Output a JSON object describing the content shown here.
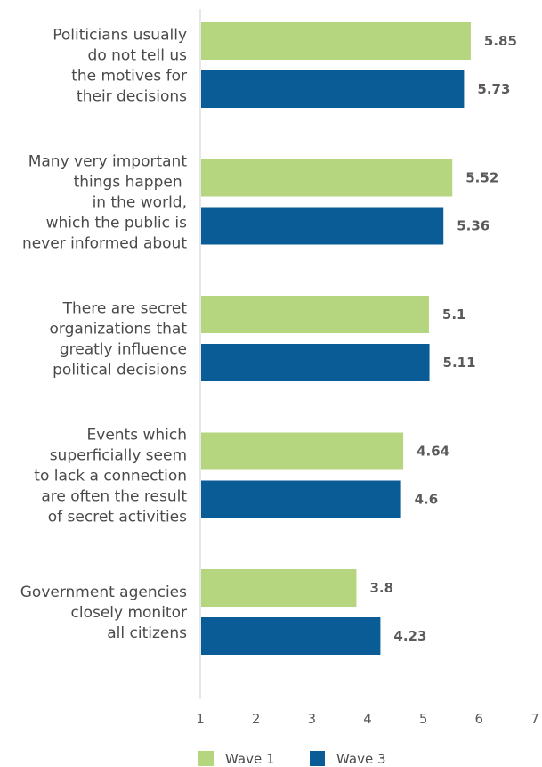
{
  "chart_data": {
    "type": "bar",
    "orientation": "horizontal",
    "xlim": [
      1,
      7
    ],
    "ticks": [
      "1",
      "2",
      "3",
      "4",
      "5",
      "6",
      "7"
    ],
    "categories": [
      [
        "Politicians usually",
        "do not tell us",
        "the motives for",
        "their decisions"
      ],
      [
        "Many very important",
        "things happen ",
        "in the world,",
        "which the public is",
        "never informed about"
      ],
      [
        "There are secret",
        "organizations that",
        "greatly influence",
        "political decisions"
      ],
      [
        "Events which",
        "superficially seem",
        "to lack a connection",
        "are often the result",
        "of secret activities"
      ],
      [
        "Government agencies",
        "closely monitor",
        "all citizens"
      ]
    ],
    "series": [
      {
        "name": "Wave 1",
        "color": "#b5d67f",
        "values": [
          5.85,
          5.52,
          5.1,
          4.64,
          3.8
        ]
      },
      {
        "name": "Wave 3",
        "color": "#0a5c96",
        "values": [
          5.73,
          5.36,
          5.11,
          4.6,
          4.23
        ]
      }
    ],
    "legend": "bottom-left",
    "grid": false
  }
}
